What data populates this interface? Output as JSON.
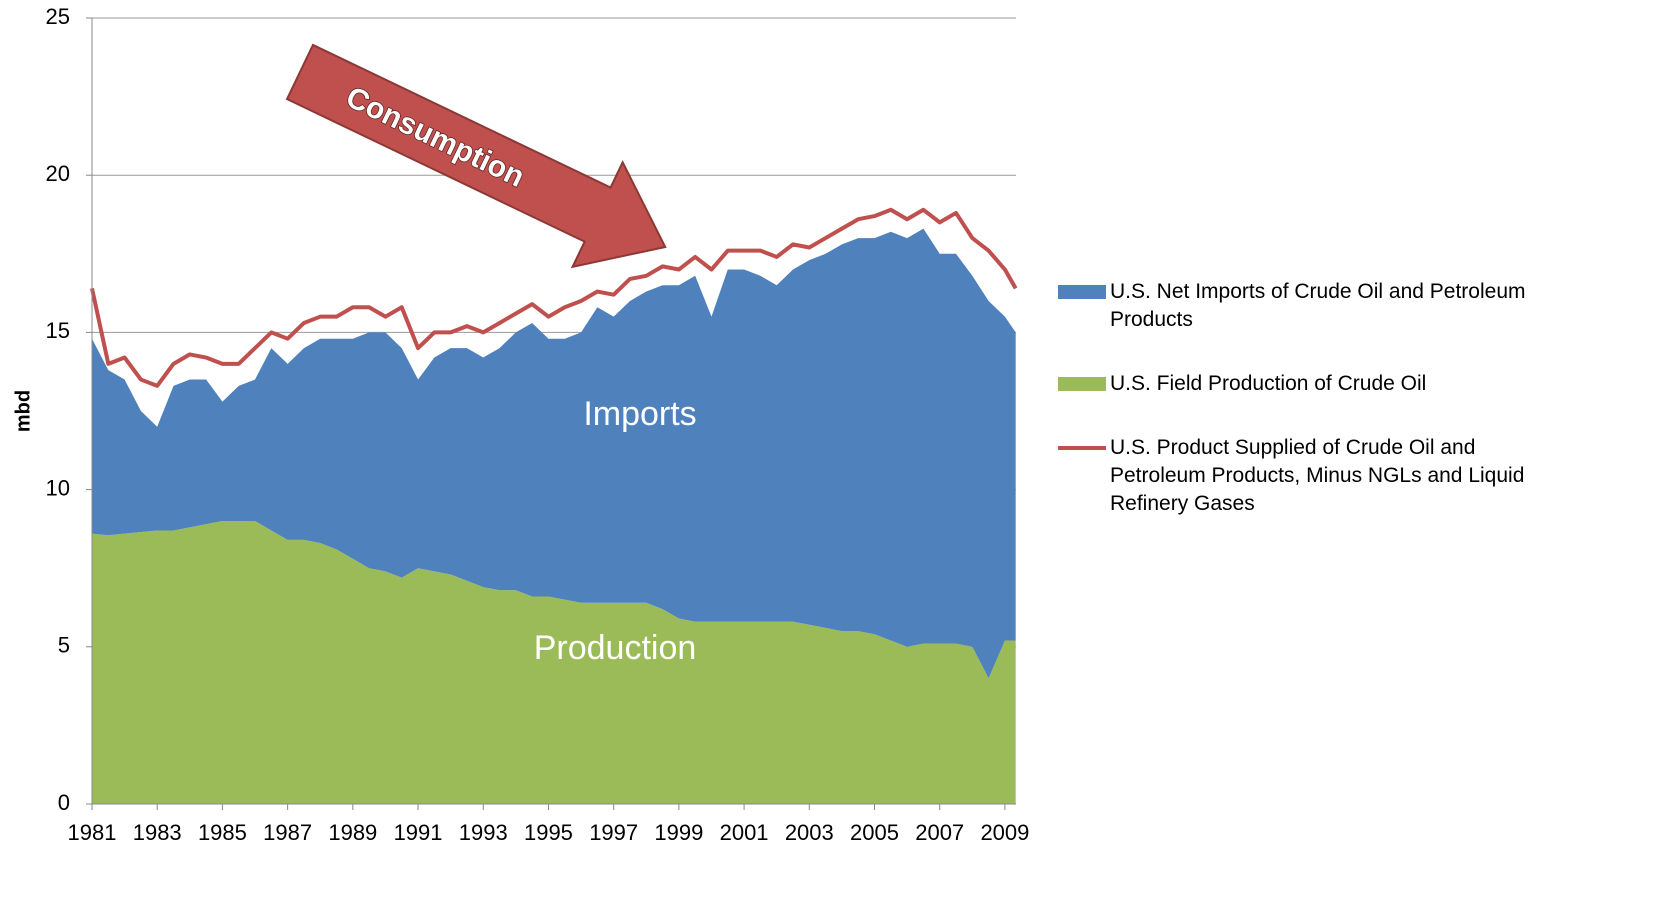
{
  "chart_data": {
    "type": "stacked-area-line",
    "y_label": "mbd",
    "annotations": {
      "imports": "Imports",
      "production": "Production",
      "arrow": "Consumption"
    },
    "x": [
      1981,
      1981.5,
      1982,
      1982.5,
      1983,
      1983.5,
      1984,
      1984.5,
      1985,
      1985.5,
      1986,
      1986.5,
      1987,
      1987.5,
      1988,
      1988.5,
      1989,
      1989.5,
      1990,
      1990.5,
      1991,
      1991.5,
      1992,
      1992.5,
      1993,
      1993.5,
      1994,
      1994.5,
      1995,
      1995.5,
      1996,
      1996.5,
      1997,
      1997.5,
      1998,
      1998.5,
      1999,
      1999.5,
      2000,
      2000.5,
      2001,
      2001.5,
      2002,
      2002.5,
      2003,
      2003.5,
      2004,
      2004.5,
      2005,
      2005.5,
      2006,
      2006.5,
      2007,
      2007.5,
      2008,
      2008.5,
      2009,
      2009.33
    ],
    "series": [
      {
        "name": "U.S. Net Imports of Crude Oil and Petroleum Products",
        "color": "#4f81bd",
        "kind": "area",
        "values": [
          6.2,
          5.25,
          4.9,
          3.85,
          3.3,
          4.6,
          4.7,
          4.6,
          3.8,
          4.3,
          4.5,
          5.8,
          5.6,
          6.1,
          6.5,
          6.7,
          7.0,
          7.5,
          7.6,
          7.3,
          6.0,
          6.8,
          7.2,
          7.4,
          7.3,
          7.7,
          8.2,
          8.7,
          8.2,
          8.3,
          8.6,
          9.4,
          9.1,
          9.6,
          9.9,
          10.3,
          10.6,
          11.0,
          9.7,
          11.2,
          11.2,
          11.0,
          10.7,
          11.2,
          11.6,
          11.9,
          12.3,
          12.5,
          12.6,
          13.0,
          13.0,
          13.2,
          12.4,
          12.4,
          11.8,
          12.0,
          10.3,
          9.8
        ]
      },
      {
        "name": "U.S. Field Production of Crude Oil",
        "color": "#9bbb59",
        "kind": "area",
        "values": [
          8.6,
          8.55,
          8.6,
          8.65,
          8.7,
          8.7,
          8.8,
          8.9,
          9.0,
          9.0,
          9.0,
          8.7,
          8.4,
          8.4,
          8.3,
          8.1,
          7.8,
          7.5,
          7.4,
          7.2,
          7.5,
          7.4,
          7.3,
          7.1,
          6.9,
          6.8,
          6.8,
          6.6,
          6.6,
          6.5,
          6.4,
          6.4,
          6.4,
          6.4,
          6.4,
          6.2,
          5.9,
          5.8,
          5.8,
          5.8,
          5.8,
          5.8,
          5.8,
          5.8,
          5.7,
          5.6,
          5.5,
          5.5,
          5.4,
          5.2,
          5.0,
          5.1,
          5.1,
          5.1,
          5.0,
          4.0,
          5.2,
          5.2
        ]
      },
      {
        "name": "U.S. Product Supplied of Crude Oil and Petroleum Products, Minus NGLs and Liquid Refinery Gases",
        "color": "#c0504d",
        "kind": "line",
        "values": [
          16.4,
          14.0,
          14.2,
          13.5,
          13.3,
          14.0,
          14.3,
          14.2,
          14.0,
          14.0,
          14.5,
          15.0,
          14.8,
          15.3,
          15.5,
          15.5,
          15.8,
          15.8,
          15.5,
          15.8,
          14.5,
          15.0,
          15.0,
          15.2,
          15.0,
          15.3,
          15.6,
          15.9,
          15.5,
          15.8,
          16.0,
          16.3,
          16.2,
          16.7,
          16.8,
          17.1,
          17.0,
          17.4,
          17.0,
          17.6,
          17.6,
          17.6,
          17.4,
          17.8,
          17.7,
          18.0,
          18.3,
          18.6,
          18.7,
          18.9,
          18.6,
          18.9,
          18.5,
          18.8,
          18.0,
          17.6,
          17.0,
          16.4
        ]
      }
    ],
    "xlim": [
      1981,
      2009.34
    ],
    "xticks": [
      1981,
      1983,
      1985,
      1987,
      1989,
      1991,
      1993,
      1995,
      1997,
      1999,
      2001,
      2003,
      2005,
      2007,
      2009
    ],
    "ylim": [
      0,
      25
    ],
    "yticks": [
      0,
      5,
      10,
      15,
      20,
      25
    ],
    "grid": true,
    "legend": "right"
  }
}
